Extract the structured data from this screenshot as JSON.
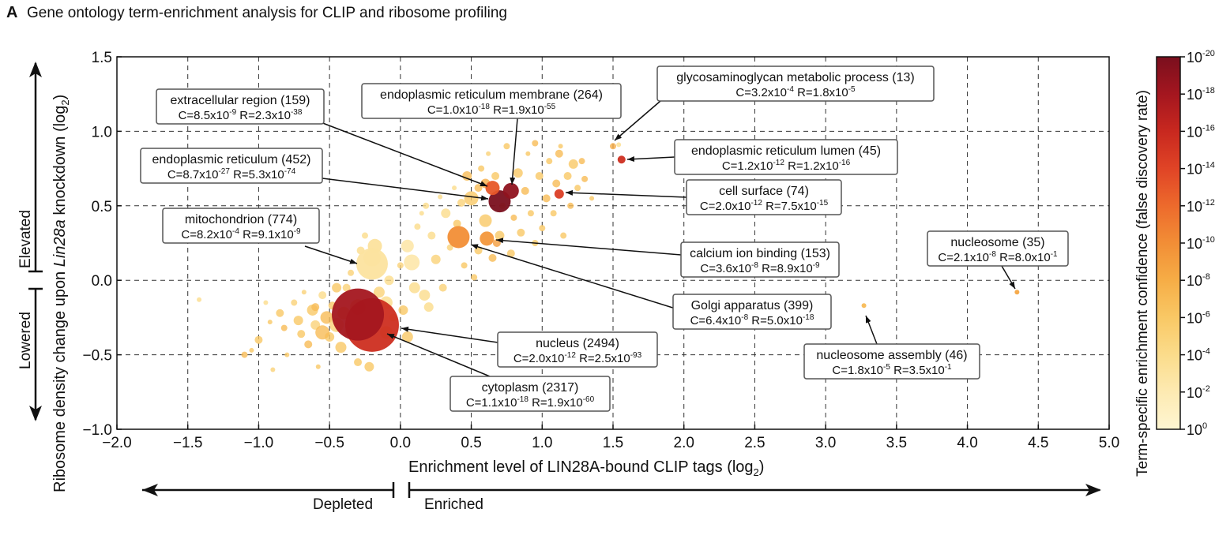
{
  "panel_letter": "A",
  "chart_data": {
    "type": "scatter",
    "title": "Gene ontology term-enrichment analysis for CLIP and ribosome profiling",
    "xlabel": "Enrichment level of LIN28A-bound CLIP tags (log",
    "xlabel_sub": "2",
    "xlabel_end": ")",
    "ylabel_pre": "Ribosome density change upon ",
    "ylabel_ital": "Lin28a",
    "ylabel_post": " knockdown (log",
    "ylabel_sub": "2",
    "ylabel_end": ")",
    "xlim": [
      -2.0,
      5.0
    ],
    "ylim": [
      -1.0,
      1.5
    ],
    "xticks": [
      "−2.0",
      "−1.5",
      "−1.0",
      "−0.5",
      "0.0",
      "0.5",
      "1.0",
      "1.5",
      "2.0",
      "2.5",
      "3.0",
      "3.5",
      "4.0",
      "4.5",
      "5.0"
    ],
    "yticks": [
      "1.5",
      "1.0",
      "0.5",
      "0.0",
      "−0.5",
      "−1.0"
    ],
    "grid": true,
    "x_arrow_left": "Depleted",
    "x_arrow_right": "Enriched",
    "y_arrow_up": "Elevated",
    "y_arrow_down": "Lowered",
    "colorbar": {
      "label": "Term-specific enrichment confidence (false discovery rate)",
      "ticks": [
        {
          "base": "10",
          "exp": "-20"
        },
        {
          "base": "10",
          "exp": "-18"
        },
        {
          "base": "10",
          "exp": "-16"
        },
        {
          "base": "10",
          "exp": "-14"
        },
        {
          "base": "10",
          "exp": "-12"
        },
        {
          "base": "10",
          "exp": "-10"
        },
        {
          "base": "10",
          "exp": "-8"
        },
        {
          "base": "10",
          "exp": "-6"
        },
        {
          "base": "10",
          "exp": "-4"
        },
        {
          "base": "10",
          "exp": "-2"
        },
        {
          "base": "10",
          "exp": "0"
        }
      ],
      "colors": [
        "#7a0f1e",
        "#a4161f",
        "#c8281f",
        "#e04426",
        "#ed6a2c",
        "#f28e36",
        "#f6ad46",
        "#f9c865",
        "#fbdc8b",
        "#fdeab2",
        "#fef6d2"
      ]
    },
    "background_points": [
      [
        -1.42,
        -0.13,
        3,
        0.2
      ],
      [
        -1.1,
        -0.5,
        4,
        0.35
      ],
      [
        -1.05,
        -0.47,
        3,
        0.3
      ],
      [
        -1.0,
        -0.4,
        5,
        0.3
      ],
      [
        -0.95,
        -0.15,
        3,
        0.2
      ],
      [
        -0.92,
        -0.28,
        3,
        0.3
      ],
      [
        -0.9,
        -0.6,
        3,
        0.25
      ],
      [
        -0.85,
        -0.22,
        5,
        0.3
      ],
      [
        -0.82,
        -0.32,
        4,
        0.35
      ],
      [
        -0.8,
        -0.5,
        3,
        0.3
      ],
      [
        -0.75,
        -0.15,
        4,
        0.25
      ],
      [
        -0.72,
        -0.27,
        6,
        0.3
      ],
      [
        -0.7,
        -0.36,
        5,
        0.3
      ],
      [
        -0.68,
        -0.08,
        3,
        0.25
      ],
      [
        -0.65,
        -0.43,
        5,
        0.35
      ],
      [
        -0.62,
        -0.2,
        7,
        0.3
      ],
      [
        -0.6,
        -0.3,
        6,
        0.25
      ],
      [
        -0.58,
        -0.58,
        3,
        0.3
      ],
      [
        -0.55,
        -0.1,
        5,
        0.2
      ],
      [
        -0.52,
        -0.25,
        8,
        0.35
      ],
      [
        -0.5,
        -0.38,
        6,
        0.3
      ],
      [
        -0.48,
        -0.17,
        5,
        0.3
      ],
      [
        -0.45,
        -0.3,
        9,
        0.25
      ],
      [
        -0.42,
        -0.45,
        7,
        0.3
      ],
      [
        -0.4,
        -0.22,
        8,
        0.35
      ],
      [
        -0.38,
        -0.05,
        5,
        0.25
      ],
      [
        -0.36,
        -0.35,
        6,
        0.3
      ],
      [
        -0.35,
        0.05,
        4,
        0.25
      ],
      [
        -0.3,
        -0.55,
        5,
        0.3
      ],
      [
        -0.28,
        0.2,
        5,
        0.2
      ],
      [
        -0.25,
        0.3,
        4,
        0.2
      ],
      [
        -0.22,
        -0.58,
        6,
        0.3
      ],
      [
        -0.2,
        0.15,
        11,
        0.15
      ],
      [
        -0.18,
        0.23,
        9,
        0.2
      ],
      [
        -0.15,
        -0.08,
        7,
        0.25
      ],
      [
        -0.1,
        -0.15,
        8,
        0.2
      ],
      [
        -0.08,
        0.0,
        6,
        0.2
      ],
      [
        -0.05,
        -0.25,
        5,
        0.3
      ],
      [
        0.0,
        0.1,
        4,
        0.25
      ],
      [
        0.02,
        -0.2,
        6,
        0.3
      ],
      [
        0.05,
        0.23,
        8,
        0.15
      ],
      [
        0.08,
        0.12,
        10,
        0.15
      ],
      [
        0.12,
        0.36,
        4,
        0.2
      ],
      [
        0.15,
        0.45,
        3,
        0.2
      ],
      [
        0.17,
        -0.1,
        7,
        0.2
      ],
      [
        0.18,
        0.5,
        4,
        0.2
      ],
      [
        0.22,
        0.3,
        5,
        0.2
      ],
      [
        0.25,
        0.14,
        6,
        0.25
      ],
      [
        0.28,
        0.56,
        3,
        0.2
      ],
      [
        0.3,
        -0.05,
        5,
        0.25
      ],
      [
        0.32,
        0.45,
        6,
        0.2
      ],
      [
        0.35,
        0.22,
        4,
        0.25
      ],
      [
        0.38,
        0.62,
        3,
        0.2
      ],
      [
        0.4,
        0.38,
        5,
        0.3
      ],
      [
        0.43,
        0.52,
        5,
        0.25
      ],
      [
        0.45,
        0.1,
        4,
        0.3
      ],
      [
        0.47,
        0.7,
        6,
        0.35
      ],
      [
        0.5,
        0.55,
        9,
        0.3
      ],
      [
        0.52,
        0.02,
        4,
        0.3
      ],
      [
        0.55,
        0.2,
        5,
        0.3
      ],
      [
        0.57,
        0.75,
        4,
        0.3
      ],
      [
        0.6,
        0.4,
        8,
        0.3
      ],
      [
        0.62,
        0.85,
        3,
        0.25
      ],
      [
        0.65,
        0.15,
        5,
        0.35
      ],
      [
        0.67,
        0.7,
        5,
        0.3
      ],
      [
        0.7,
        0.3,
        6,
        0.3
      ],
      [
        0.72,
        0.5,
        4,
        0.35
      ],
      [
        0.75,
        0.9,
        4,
        0.3
      ],
      [
        0.78,
        0.18,
        5,
        0.3
      ],
      [
        0.8,
        0.42,
        4,
        0.35
      ],
      [
        0.83,
        0.72,
        6,
        0.3
      ],
      [
        0.85,
        0.32,
        5,
        0.3
      ],
      [
        0.88,
        0.6,
        5,
        0.35
      ],
      [
        0.9,
        0.85,
        3,
        0.3
      ],
      [
        0.92,
        0.45,
        4,
        0.3
      ],
      [
        0.95,
        0.25,
        4,
        0.3
      ],
      [
        0.98,
        0.7,
        5,
        0.3
      ],
      [
        1.0,
        0.35,
        4,
        0.3
      ],
      [
        1.03,
        0.55,
        5,
        0.35
      ],
      [
        1.05,
        0.8,
        4,
        0.3
      ],
      [
        1.08,
        0.45,
        4,
        0.3
      ],
      [
        1.1,
        0.65,
        5,
        0.35
      ],
      [
        1.13,
        0.9,
        3,
        0.3
      ],
      [
        1.15,
        0.3,
        4,
        0.3
      ],
      [
        1.18,
        0.7,
        5,
        0.3
      ],
      [
        1.2,
        0.5,
        4,
        0.35
      ],
      [
        1.22,
        0.78,
        6,
        0.3
      ],
      [
        1.25,
        0.62,
        4,
        0.3
      ],
      [
        1.3,
        0.68,
        4,
        0.35
      ],
      [
        1.35,
        0.55,
        3,
        0.3
      ],
      [
        0.6,
        0.65,
        6,
        0.4
      ],
      [
        0.55,
        0.62,
        5,
        0.35
      ],
      [
        0.68,
        0.25,
        5,
        0.45
      ],
      [
        0.2,
        -0.18,
        6,
        0.2
      ],
      [
        0.1,
        -0.05,
        7,
        0.2
      ],
      [
        0.95,
        0.92,
        4,
        0.35
      ],
      [
        1.12,
        0.85,
        5,
        0.35
      ],
      [
        1.28,
        0.8,
        4,
        0.35
      ],
      [
        -0.3,
        -0.18,
        10,
        0.35
      ],
      [
        -0.55,
        -0.35,
        9,
        0.35
      ],
      [
        -0.1,
        -0.35,
        8,
        0.3
      ],
      [
        0.05,
        -0.38,
        7,
        0.3
      ],
      [
        -0.45,
        -0.05,
        6,
        0.3
      ],
      [
        -0.6,
        -0.18,
        5,
        0.35
      ],
      [
        1.5,
        0.9,
        4,
        0.4
      ]
    ],
    "terms": [
      {
        "name": "extracellular region (159)",
        "C_exp": "-9",
        "R_exp": "-38",
        "C_base": "C=8.5x10",
        "R_base": "R=2.3x10",
        "x": 0.65,
        "y": 0.62,
        "r": 9,
        "c": 0.65
      },
      {
        "name": "endoplasmic reticulum membrane (264)",
        "C_exp": "-18",
        "R_exp": "-55",
        "C_base": "C=1.0x10",
        "R_base": "R=1.9x10",
        "x": 0.78,
        "y": 0.6,
        "r": 10,
        "c": 0.95
      },
      {
        "name": "endoplasmic reticulum (452)",
        "C_exp": "-27",
        "R_exp": "-74",
        "C_base": "C=8.7x10",
        "R_base": "R=5.3x10",
        "x": 0.7,
        "y": 0.53,
        "r": 14,
        "c": 1.0
      },
      {
        "name": "mitochondrion (774)",
        "C_exp": "-4",
        "R_exp": "-9",
        "C_base": "C=8.2x10",
        "R_base": "R=9.1x10",
        "x": -0.2,
        "y": 0.11,
        "r": 20,
        "c": 0.15
      },
      {
        "name": "glycosaminoglycan metabolic process (13)",
        "C_exp": "-4",
        "R_exp": "-5",
        "C_base": "C=3.2x10",
        "R_base": "R=1.8x10",
        "x": 1.54,
        "y": 0.91,
        "r": 3,
        "c": 0.15
      },
      {
        "name": "endoplasmic reticulum lumen (45)",
        "C_exp": "-12",
        "R_exp": "-16",
        "C_base": "C=1.2x10",
        "R_base": "R=1.2x10",
        "x": 1.56,
        "y": 0.81,
        "r": 5,
        "c": 0.78
      },
      {
        "name": "cell surface (74)",
        "C_exp": "-12",
        "R_exp": "-15",
        "C_base": "C=2.0x10",
        "R_base": "R=7.5x10",
        "x": 1.12,
        "y": 0.58,
        "r": 6,
        "c": 0.72
      },
      {
        "name": "calcium ion binding (153)",
        "C_exp": "-8",
        "R_exp": "-9",
        "C_base": "C=3.6x10",
        "R_base": "R=8.9x10",
        "x": 0.61,
        "y": 0.28,
        "r": 9,
        "c": 0.47
      },
      {
        "name": "Golgi apparatus (399)",
        "C_exp": "-8",
        "R_exp": "-18",
        "C_base": "C=6.4x10",
        "R_base": "R=5.0x10",
        "x": 0.41,
        "y": 0.29,
        "r": 14,
        "c": 0.5
      },
      {
        "name": "nucleus (2494)",
        "C_exp": "-12",
        "R_exp": "-93",
        "C_base": "C=2.0x10",
        "R_base": "R=2.5x10",
        "x": -0.2,
        "y": -0.3,
        "r": 34,
        "c": 0.78
      },
      {
        "name": "cytoplasm (2317)",
        "C_exp": "-18",
        "R_exp": "-60",
        "C_base": "C=1.1x10",
        "R_base": "R=1.9x10",
        "x": -0.3,
        "y": -0.23,
        "r": 33,
        "c": 0.9
      },
      {
        "name": "nucleosome (35)",
        "C_exp": "-8",
        "R_exp": "-1",
        "C_base": "C=2.1x10",
        "R_base": "R=8.0x10",
        "x": 4.35,
        "y": -0.08,
        "r": 3,
        "c": 0.42
      },
      {
        "name": "nucleosome assembly (46)",
        "C_exp": "-5",
        "R_exp": "-1",
        "C_base": "C=1.8x10",
        "R_base": "R=3.5x10",
        "x": 3.27,
        "y": -0.17,
        "r": 3,
        "c": 0.35
      }
    ]
  }
}
